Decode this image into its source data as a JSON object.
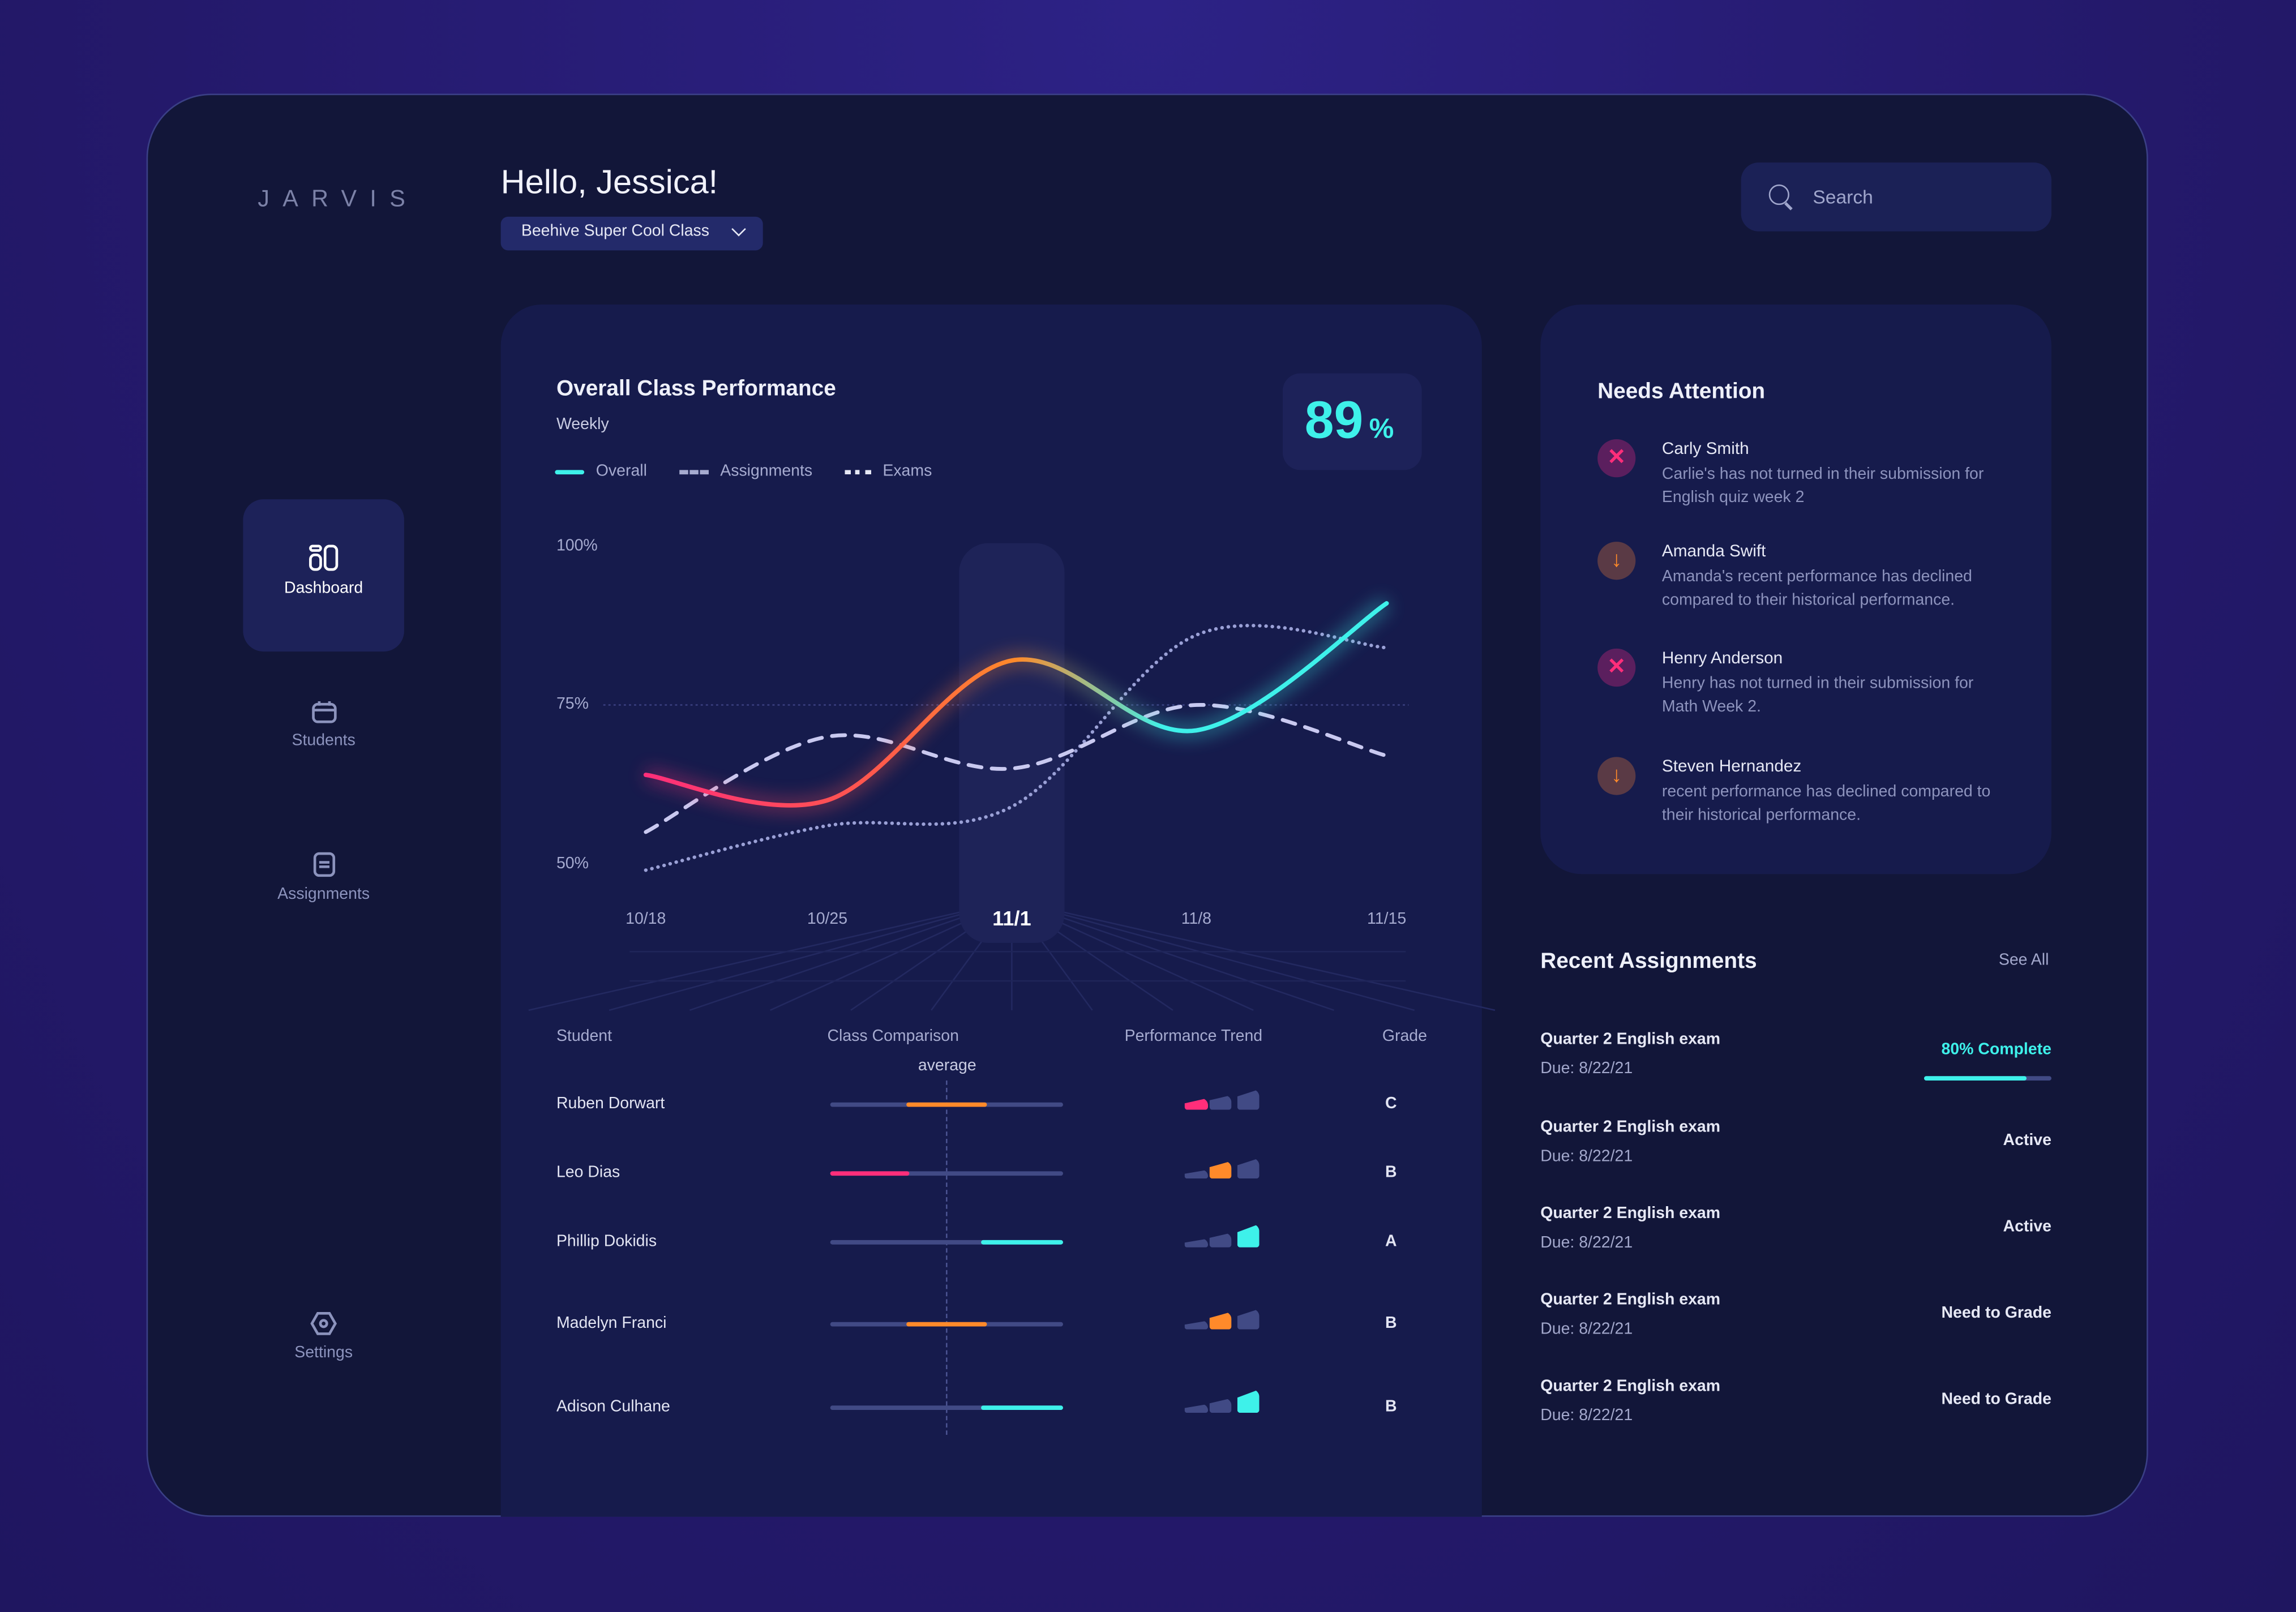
{
  "app": {
    "logo": "JARVIS",
    "greeting": "Hello, Jessica!",
    "class_selector": "Beehive Super Cool Class",
    "search_placeholder": "Search"
  },
  "sidebar": {
    "items": [
      {
        "label": "Dashboard",
        "icon": "dashboard-icon",
        "active": true
      },
      {
        "label": "Students",
        "icon": "calendar-icon",
        "active": false
      },
      {
        "label": "Assignments",
        "icon": "document-icon",
        "active": false
      },
      {
        "label": "Settings",
        "icon": "settings-icon",
        "active": false
      }
    ]
  },
  "performance": {
    "title": "Overall Class Performance",
    "subtitle": "Weekly",
    "score": "89",
    "score_unit": "%",
    "legend": [
      "Overall",
      "Assignments",
      "Exams"
    ]
  },
  "chart_data": {
    "type": "line",
    "x": [
      "10/18",
      "10/25",
      "11/1",
      "11/8",
      "11/15"
    ],
    "highlight": "11/1",
    "yticks": [
      "100%",
      "75%",
      "50%"
    ],
    "ylim": [
      50,
      100
    ],
    "reference_line": 75,
    "series": [
      {
        "name": "Overall",
        "values": [
          64,
          60,
          82,
          71,
          91
        ],
        "style": "solid",
        "colors": [
          "#ff2e7a",
          "#ff8a2a",
          "#3ef1ea"
        ]
      },
      {
        "name": "Assignments",
        "values": [
          55,
          70,
          65,
          75,
          67
        ],
        "style": "dashed",
        "color": "#c9c9f0"
      },
      {
        "name": "Exams",
        "values": [
          49,
          56,
          59,
          86,
          84
        ],
        "style": "dotted",
        "color": "#9aa0d6"
      }
    ]
  },
  "students": {
    "headers": [
      "Student",
      "Class Comparison",
      "Performance Trend",
      "Grade"
    ],
    "average_label": "average",
    "rows": [
      {
        "name": "Ruben Dorwart",
        "comparison": [
          0.33,
          0.67
        ],
        "trend_level": 1,
        "color": "#ff8a2a",
        "trend_color": "#ff2e7a",
        "grade": "C"
      },
      {
        "name": "Leo Dias",
        "comparison": [
          0,
          0.34
        ],
        "trend_level": 2,
        "color": "#ff2e7a",
        "trend_color": "#ff8a2a",
        "grade": "B"
      },
      {
        "name": "Phillip Dokidis",
        "comparison": [
          0.65,
          1
        ],
        "trend_level": 3,
        "color": "#3ef1ea",
        "trend_color": "#3ef1ea",
        "grade": "A"
      },
      {
        "name": "Madelyn Franci",
        "comparison": [
          0.33,
          0.67
        ],
        "trend_level": 2,
        "color": "#ff8a2a",
        "trend_color": "#ff8a2a",
        "grade": "B"
      },
      {
        "name": "Adison Culhane",
        "comparison": [
          0.65,
          1
        ],
        "trend_level": 3,
        "color": "#3ef1ea",
        "trend_color": "#3ef1ea",
        "grade": "B"
      }
    ]
  },
  "attention": {
    "title": "Needs Attention",
    "items": [
      {
        "type": "missing",
        "icon": "x-icon",
        "name": "Carly Smith",
        "desc": "Carlie's has not turned in their submission for English quiz week 2"
      },
      {
        "type": "decline",
        "icon": "arrow-down-icon",
        "name": "Amanda Swift",
        "desc": "Amanda's recent performance has declined compared to their historical performance."
      },
      {
        "type": "missing",
        "icon": "x-icon",
        "name": "Henry Anderson",
        "desc": "Henry has not turned in their submission for Math Week 2."
      },
      {
        "type": "decline",
        "icon": "arrow-down-icon",
        "name": "Steven Hernandez",
        "desc": "recent performance has declined compared to their historical performance."
      }
    ]
  },
  "recent": {
    "title": "Recent Assignments",
    "see_all": "See All",
    "items": [
      {
        "title": "Quarter 2 English exam",
        "due": "Due: 8/22/21",
        "status": "80% Complete",
        "progress": 0.8
      },
      {
        "title": "Quarter 2 English exam",
        "due": "Due: 8/22/21",
        "status": "Active"
      },
      {
        "title": "Quarter 2 English exam",
        "due": "Due: 8/22/21",
        "status": "Active"
      },
      {
        "title": "Quarter 2 English exam",
        "due": "Due: 8/22/21",
        "status": "Need to Grade"
      },
      {
        "title": "Quarter 2 English exam",
        "due": "Due: 8/22/21",
        "status": "Need to Grade"
      }
    ]
  },
  "colors": {
    "accent": "#3ef1ea",
    "pink": "#ff2e7a",
    "orange": "#ff8a2a",
    "bg": "#121639",
    "card": "#161b4c"
  }
}
